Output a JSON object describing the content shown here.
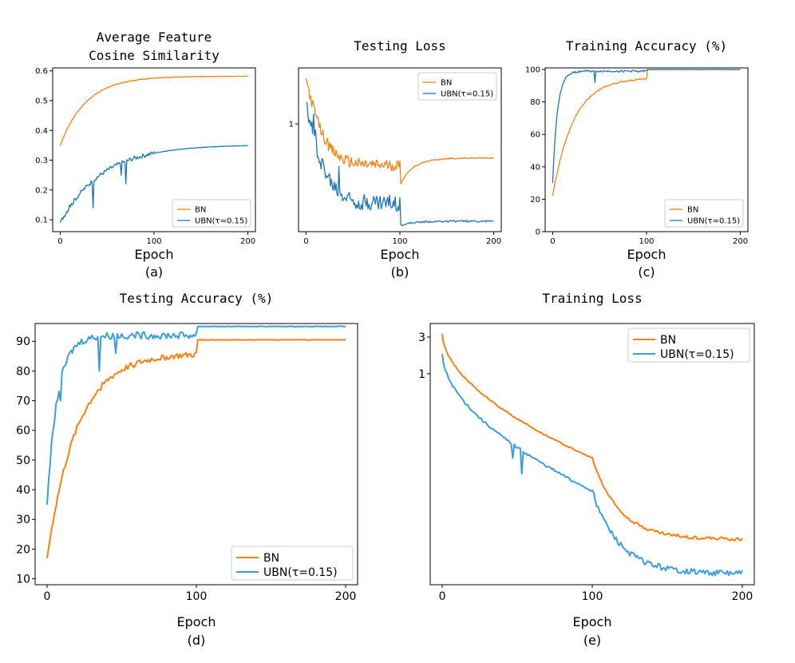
{
  "colors": {
    "bn": "#ff7f0e",
    "ubn": "#1f77b4",
    "ubn_light": "#3a9ee6"
  },
  "chart_data": [
    {
      "id": "a",
      "type": "line",
      "title": [
        "Average Feature",
        "Cosine Similarity"
      ],
      "xlabel": "Epoch",
      "caption": "(a)",
      "xlim": [
        -8,
        208
      ],
      "ylim": [
        0.06,
        0.61
      ],
      "xticks": [
        0,
        100,
        200
      ],
      "yticks": [
        0.1,
        0.2,
        0.3,
        0.4,
        0.5,
        0.6
      ],
      "ytick_labels": [
        "0.1",
        "0.2",
        "0.3",
        "0.4",
        "0.5",
        "0.6"
      ],
      "legend": "lower right",
      "series": [
        {
          "name": "BN",
          "color": "#ff7f0e",
          "shape": "rise",
          "from": 0.35,
          "to": 0.582,
          "rate": 28,
          "noise": 0.003
        },
        {
          "name": "UBN(τ=0.15)",
          "color": "#1f77b4",
          "shape": "rise",
          "from": 0.09,
          "to": 0.352,
          "rate": 45,
          "noise": 0.015,
          "end_noise_epoch": 100,
          "dips": [
            [
              10,
              0.15
            ],
            [
              35,
              0.14
            ],
            [
              65,
              0.25
            ],
            [
              70,
              0.22
            ]
          ]
        }
      ]
    },
    {
      "id": "b",
      "type": "line",
      "title": [
        "Testing Loss"
      ],
      "xlabel": "Epoch",
      "caption": "(b)",
      "yscale": "log",
      "xlim": [
        -8,
        208
      ],
      "ylim": [
        0.22,
        2.2
      ],
      "xticks": [
        0,
        100,
        200
      ],
      "yticks": [
        1
      ],
      "ytick_labels": [
        "1"
      ],
      "legend": "upper right",
      "series": [
        {
          "name": "BN",
          "color": "#ff7f0e",
          "shape": "loss_drop",
          "start": 1.9,
          "plateau": 0.56,
          "drop_to": 0.42,
          "end": 0.62,
          "noise": 0.08
        },
        {
          "name": "UBN(τ=0.15)",
          "color": "#1f77b4",
          "shape": "loss_drop",
          "start": 1.35,
          "plateau": 0.33,
          "drop_to": 0.24,
          "end": 0.255,
          "noise": 0.12,
          "spikes": [
            [
              8,
              1.15
            ],
            [
              10,
              0.92
            ],
            [
              35,
              0.55
            ]
          ]
        }
      ]
    },
    {
      "id": "c",
      "type": "line",
      "title": [
        "Training Accuracy (%)"
      ],
      "xlabel": "Epoch",
      "caption": "(c)",
      "xlim": [
        -8,
        208
      ],
      "ylim": [
        0,
        101
      ],
      "xticks": [
        0,
        100,
        200
      ],
      "yticks": [
        0,
        20,
        40,
        60,
        80,
        100
      ],
      "ytick_labels": [
        "0",
        "20",
        "40",
        "60",
        "80",
        "100"
      ],
      "ytick_warp": [
        [
          0,
          0
        ],
        [
          20,
          20
        ],
        [
          40,
          40
        ],
        [
          60,
          60
        ],
        [
          80,
          80
        ],
        [
          100,
          100
        ]
      ],
      "legend": "lower right",
      "series": [
        {
          "name": "BN",
          "color": "#ff7f0e",
          "shape": "acc",
          "from": 22,
          "plateau": 95,
          "to": 100,
          "rate": 22,
          "noise": 0.4
        },
        {
          "name": "UBN(τ=0.15)",
          "color": "#1f77b4",
          "shape": "acc",
          "from": 30,
          "plateau": 99,
          "to": 100,
          "rate": 5,
          "noise": 0.6,
          "dips": [
            [
              45,
              92
            ]
          ]
        }
      ]
    },
    {
      "id": "d",
      "type": "line",
      "title": [
        "Testing Accuracy (%)"
      ],
      "xlabel": "Epoch",
      "caption": "(d)",
      "xlim": [
        -8,
        208
      ],
      "ylim": [
        8,
        96
      ],
      "xticks": [
        0,
        100,
        200
      ],
      "yticks": [
        10,
        20,
        30,
        40,
        50,
        60,
        70,
        80,
        90
      ],
      "ytick_labels": [
        "10",
        "20",
        "30",
        "40",
        "50",
        "60",
        "70",
        "80",
        "90"
      ],
      "legend": "lower right",
      "series": [
        {
          "name": "BN",
          "color": "#ff7f0e",
          "shape": "acc",
          "from": 17,
          "plateau": 86,
          "to": 90.5,
          "rate": 20,
          "noise": 1.0
        },
        {
          "name": "UBN(τ=0.15)",
          "color": "#3a9ee6",
          "shape": "acc",
          "from": 35,
          "plateau": 92,
          "to": 95,
          "rate": 7,
          "noise": 1.2,
          "dips": [
            [
              9,
              70
            ],
            [
              35,
              80
            ],
            [
              46,
              86
            ]
          ]
        }
      ]
    },
    {
      "id": "e",
      "type": "line",
      "title": [
        "Training Loss"
      ],
      "xlabel": "Epoch",
      "caption": "(e)",
      "yscale": "log",
      "xlim": [
        -8,
        208
      ],
      "ylim": [
        0.0018,
        4.5
      ],
      "xticks": [
        0,
        100,
        200
      ],
      "yticks": [
        1,
        3
      ],
      "ytick_labels": [
        "1",
        "3"
      ],
      "legend": "upper right",
      "series": [
        {
          "name": "BN",
          "color": "#ff7f0e",
          "shape": "train_loss",
          "start": 3.3,
          "pre": 0.08,
          "post": 0.007,
          "noise": 0.08
        },
        {
          "name": "UBN(τ=0.15)",
          "color": "#3a9ee6",
          "shape": "train_loss",
          "start": 1.8,
          "pre": 0.03,
          "post": 0.0025,
          "noise": 0.15,
          "spikes": [
            [
              47,
              0.08
            ],
            [
              53,
              0.05
            ],
            [
              86,
              0.04
            ]
          ]
        }
      ]
    }
  ]
}
